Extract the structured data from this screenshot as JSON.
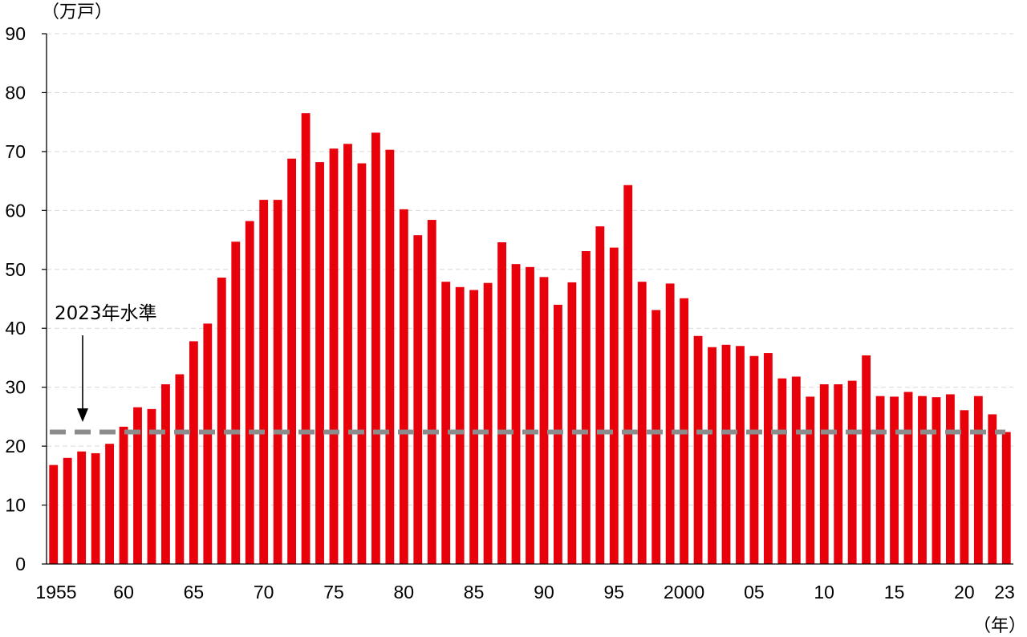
{
  "chart_data": {
    "type": "bar",
    "title": "",
    "y_unit_label": "（万戸）",
    "x_unit_label": "（年）",
    "ylim": [
      0,
      90
    ],
    "yticks": [
      0,
      10,
      20,
      30,
      40,
      50,
      60,
      70,
      80,
      90
    ],
    "grid": true,
    "colors": {
      "bar": "#e8000b",
      "reference": "#8c8c8c",
      "grid": "#d9d9d9",
      "axis": "#000000"
    },
    "x_tick_labels": [
      {
        "year": 1955,
        "label": "1955"
      },
      {
        "year": 1960,
        "label": "60"
      },
      {
        "year": 1965,
        "label": "65"
      },
      {
        "year": 1970,
        "label": "70"
      },
      {
        "year": 1975,
        "label": "75"
      },
      {
        "year": 1980,
        "label": "80"
      },
      {
        "year": 1985,
        "label": "85"
      },
      {
        "year": 1990,
        "label": "90"
      },
      {
        "year": 1995,
        "label": "95"
      },
      {
        "year": 2000,
        "label": "2000"
      },
      {
        "year": 2005,
        "label": "05"
      },
      {
        "year": 2010,
        "label": "10"
      },
      {
        "year": 2015,
        "label": "15"
      },
      {
        "year": 2020,
        "label": "20"
      },
      {
        "year": 2023,
        "label": "23"
      }
    ],
    "years": [
      1955,
      1956,
      1957,
      1958,
      1959,
      1960,
      1961,
      1962,
      1963,
      1964,
      1965,
      1966,
      1967,
      1968,
      1969,
      1970,
      1971,
      1972,
      1973,
      1974,
      1975,
      1976,
      1977,
      1978,
      1979,
      1980,
      1981,
      1982,
      1983,
      1984,
      1985,
      1986,
      1987,
      1988,
      1989,
      1990,
      1991,
      1992,
      1993,
      1994,
      1995,
      1996,
      1997,
      1998,
      1999,
      2000,
      2001,
      2002,
      2003,
      2004,
      2005,
      2006,
      2007,
      2008,
      2009,
      2010,
      2011,
      2012,
      2013,
      2014,
      2015,
      2016,
      2017,
      2018,
      2019,
      2020,
      2021,
      2022,
      2023
    ],
    "values": [
      16.8,
      18.0,
      19.1,
      18.8,
      20.4,
      23.3,
      26.6,
      26.3,
      30.5,
      32.2,
      37.8,
      40.8,
      48.6,
      54.7,
      58.2,
      61.8,
      61.8,
      68.8,
      76.5,
      68.2,
      70.5,
      71.3,
      68.0,
      73.2,
      70.3,
      60.2,
      55.8,
      58.4,
      47.9,
      47.0,
      46.5,
      47.7,
      54.6,
      50.9,
      50.4,
      48.7,
      44.0,
      47.8,
      53.1,
      57.3,
      53.7,
      64.3,
      47.9,
      43.1,
      47.6,
      45.1,
      38.7,
      36.8,
      37.2,
      37.0,
      35.3,
      35.8,
      31.5,
      31.8,
      28.4,
      30.5,
      30.5,
      31.1,
      35.4,
      28.5,
      28.4,
      29.2,
      28.5,
      28.3,
      28.8,
      26.1,
      28.5,
      25.4,
      22.4
    ],
    "reference_line": {
      "value": 22.4,
      "label": "2023年水準",
      "style": "dashed"
    }
  }
}
